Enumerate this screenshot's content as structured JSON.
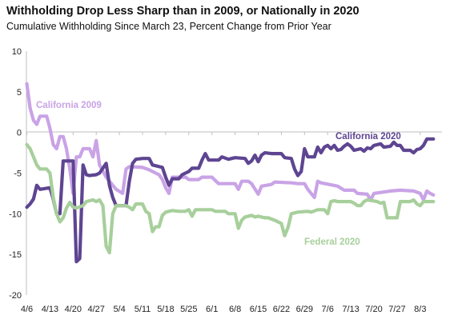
{
  "chart_data": {
    "type": "line",
    "title": "Withholding Drop Less Sharp than in 2009, or Nationally in 2020",
    "subtitle": "Cumulative Withholding Since March 23, Percent Change from Prior Year",
    "xlabel": "",
    "ylabel": "",
    "ylim": [
      -20,
      10
    ],
    "yticks": [
      10,
      5,
      0,
      -5,
      -10,
      -15,
      -20
    ],
    "x_tick_labels": [
      "4/6",
      "4/13",
      "4/20",
      "4/27",
      "5/4",
      "5/11",
      "5/18",
      "5/25",
      "6/1",
      "6/8",
      "6/15",
      "6/22",
      "6/29",
      "7/6",
      "7/13",
      "7/20",
      "7/27",
      "8/3"
    ],
    "x_start": "4/6",
    "x_end": "8/7",
    "grid": false,
    "series": [
      {
        "name": "California 2009",
        "color": "#c9a3e6",
        "points": [
          [
            0,
            6
          ],
          [
            1,
            3
          ],
          [
            2,
            1.5
          ],
          [
            3,
            1
          ],
          [
            4,
            2
          ],
          [
            6,
            2
          ],
          [
            7,
            0.5
          ],
          [
            8,
            -1.5
          ],
          [
            9,
            -2
          ],
          [
            10,
            -0.5
          ],
          [
            11,
            -0.5
          ],
          [
            12,
            -2
          ],
          [
            13,
            -4.5
          ],
          [
            14,
            -7.5
          ],
          [
            15,
            -3
          ],
          [
            16,
            -3
          ],
          [
            17,
            -2
          ],
          [
            19,
            -2
          ],
          [
            20,
            -3
          ],
          [
            21,
            -1
          ],
          [
            22,
            -4
          ],
          [
            24,
            -5.5
          ],
          [
            25,
            -6
          ],
          [
            27,
            -7
          ],
          [
            29,
            -7.5
          ],
          [
            30,
            -4.5
          ],
          [
            31,
            -4.2
          ],
          [
            35,
            -4.3
          ],
          [
            37,
            -4.6
          ],
          [
            39,
            -5
          ],
          [
            40,
            -5.2
          ],
          [
            41,
            -5.8
          ],
          [
            42,
            -6.8
          ],
          [
            43,
            -7.5
          ],
          [
            44,
            -5.5
          ],
          [
            48,
            -5.5
          ],
          [
            49,
            -5.8
          ],
          [
            52,
            -5.8
          ],
          [
            53,
            -5.5
          ],
          [
            56,
            -5.5
          ],
          [
            57,
            -5.9
          ],
          [
            58,
            -6.3
          ],
          [
            63,
            -6.3
          ],
          [
            64,
            -7
          ],
          [
            65,
            -6
          ],
          [
            67,
            -6
          ],
          [
            68,
            -6.3
          ],
          [
            70,
            -7.6
          ],
          [
            71,
            -6.6
          ],
          [
            74,
            -6.4
          ],
          [
            75,
            -6.1
          ],
          [
            80,
            -6.2
          ],
          [
            82,
            -6.3
          ],
          [
            84,
            -6.3
          ],
          [
            85,
            -7
          ],
          [
            86,
            -7.5
          ],
          [
            87,
            -8
          ],
          [
            88,
            -6
          ],
          [
            89,
            -6.2
          ],
          [
            94,
            -6.6
          ],
          [
            96,
            -7.1
          ],
          [
            99,
            -7.1
          ],
          [
            100,
            -7.5
          ],
          [
            103,
            -7.6
          ],
          [
            104,
            -8.3
          ],
          [
            105,
            -7.5
          ],
          [
            110,
            -7.2
          ],
          [
            113,
            -7.1
          ],
          [
            117,
            -7.2
          ],
          [
            119,
            -7.5
          ],
          [
            120,
            -8.3
          ],
          [
            121,
            -7.2
          ],
          [
            122,
            -7.5
          ],
          [
            123,
            -7.7
          ]
        ]
      },
      {
        "name": "California 2020",
        "color": "#5e4591",
        "points": [
          [
            0,
            -9.2
          ],
          [
            1,
            -8.8
          ],
          [
            2,
            -8.2
          ],
          [
            3,
            -6.5
          ],
          [
            4,
            -7
          ],
          [
            7,
            -6.8
          ],
          [
            8,
            -8.2
          ],
          [
            9,
            -10
          ],
          [
            10,
            -10
          ],
          [
            11,
            -3.5
          ],
          [
            14,
            -3.5
          ],
          [
            15,
            -15.9
          ],
          [
            16,
            -15.5
          ],
          [
            17,
            -4
          ],
          [
            18,
            -5.2
          ],
          [
            19,
            -5.3
          ],
          [
            21,
            -5.2
          ],
          [
            22,
            -5
          ],
          [
            24,
            -3.8
          ],
          [
            25,
            -6.5
          ],
          [
            26,
            -8
          ],
          [
            27,
            -9
          ],
          [
            30,
            -9
          ],
          [
            31,
            -6
          ],
          [
            32,
            -3.8
          ],
          [
            33,
            -3.3
          ],
          [
            35,
            -3.2
          ],
          [
            37,
            -3.2
          ],
          [
            38,
            -4
          ],
          [
            41,
            -4.3
          ],
          [
            42,
            -5.5
          ],
          [
            43,
            -6.5
          ],
          [
            44,
            -5.7
          ],
          [
            46,
            -5.7
          ],
          [
            47,
            -5.2
          ],
          [
            49,
            -4.8
          ],
          [
            50,
            -4.4
          ],
          [
            52,
            -4.4
          ],
          [
            53,
            -3.4
          ],
          [
            54,
            -2.6
          ],
          [
            55,
            -3.4
          ],
          [
            58,
            -3.4
          ],
          [
            59,
            -3
          ],
          [
            61,
            -3.3
          ],
          [
            63,
            -3.1
          ],
          [
            66,
            -3.2
          ],
          [
            67,
            -3.8
          ],
          [
            68,
            -3.5
          ],
          [
            69,
            -2.8
          ],
          [
            70,
            -3.6
          ],
          [
            71,
            -2.8
          ],
          [
            72,
            -2.5
          ],
          [
            74,
            -2.6
          ],
          [
            77,
            -2.6
          ],
          [
            78,
            -3.1
          ],
          [
            80,
            -3.2
          ],
          [
            81,
            -4.5
          ],
          [
            82,
            -5.3
          ],
          [
            83,
            -4.8
          ],
          [
            84,
            -2
          ],
          [
            85,
            -3
          ],
          [
            87,
            -3
          ],
          [
            88,
            -1.8
          ],
          [
            89,
            -2.5
          ],
          [
            90,
            -1.8
          ],
          [
            91,
            -1.6
          ],
          [
            92,
            -2
          ],
          [
            93,
            -1.6
          ],
          [
            94,
            -2.2
          ],
          [
            95,
            -2.1
          ],
          [
            96,
            -1.7
          ],
          [
            97,
            -1.4
          ],
          [
            98,
            -1.7
          ],
          [
            99,
            -2.2
          ],
          [
            101,
            -2
          ],
          [
            102,
            -2.3
          ],
          [
            103,
            -1.9
          ],
          [
            104,
            -2
          ],
          [
            105,
            -1.6
          ],
          [
            107,
            -1.4
          ],
          [
            108,
            -1.8
          ],
          [
            110,
            -1.7
          ],
          [
            111,
            -1.2
          ],
          [
            112,
            -1.6
          ],
          [
            113,
            -1.6
          ],
          [
            114,
            -2.2
          ],
          [
            116,
            -2.2
          ],
          [
            117,
            -2.5
          ],
          [
            118,
            -2.1
          ],
          [
            119,
            -2
          ],
          [
            120,
            -1.6
          ],
          [
            121,
            -0.8
          ],
          [
            123,
            -0.8
          ]
        ]
      },
      {
        "name": "Federal 2020",
        "color": "#a7cf9b",
        "points": [
          [
            0,
            -1.5
          ],
          [
            1,
            -2
          ],
          [
            2,
            -3
          ],
          [
            3,
            -4
          ],
          [
            4,
            -4.5
          ],
          [
            6,
            -4.5
          ],
          [
            7,
            -5
          ],
          [
            8,
            -8
          ],
          [
            9,
            -10
          ],
          [
            10,
            -11
          ],
          [
            11,
            -10.5
          ],
          [
            12,
            -9.3
          ],
          [
            13,
            -8.6
          ],
          [
            14,
            -9.2
          ],
          [
            15,
            -9.3
          ],
          [
            17,
            -9
          ],
          [
            18,
            -8.5
          ],
          [
            20,
            -8.3
          ],
          [
            21,
            -8.5
          ],
          [
            22,
            -8.3
          ],
          [
            23,
            -9
          ],
          [
            24,
            -14
          ],
          [
            25,
            -14.8
          ],
          [
            26,
            -10
          ],
          [
            27,
            -9
          ],
          [
            30,
            -9
          ],
          [
            31,
            -9.2
          ],
          [
            32,
            -9.5
          ],
          [
            33,
            -8.8
          ],
          [
            35,
            -8.8
          ],
          [
            36,
            -9.7
          ],
          [
            37,
            -10
          ],
          [
            38,
            -12.2
          ],
          [
            39,
            -11.6
          ],
          [
            40,
            -11.6
          ],
          [
            41,
            -10.2
          ],
          [
            42,
            -9.8
          ],
          [
            44,
            -9.6
          ],
          [
            46,
            -9.7
          ],
          [
            48,
            -9.7
          ],
          [
            49,
            -9.5
          ],
          [
            50,
            -10.3
          ],
          [
            51,
            -9.5
          ],
          [
            56,
            -9.5
          ],
          [
            57,
            -9.7
          ],
          [
            60,
            -9.7
          ],
          [
            61,
            -10
          ],
          [
            63,
            -10
          ],
          [
            64,
            -11.8
          ],
          [
            65,
            -10.8
          ],
          [
            66,
            -10.4
          ],
          [
            68,
            -10.2
          ],
          [
            69,
            -10.4
          ],
          [
            70,
            -10.3
          ],
          [
            72,
            -10.5
          ],
          [
            73,
            -10.5
          ],
          [
            75,
            -10.8
          ],
          [
            77,
            -11.2
          ],
          [
            78,
            -12.7
          ],
          [
            79,
            -11.7
          ],
          [
            80,
            -10
          ],
          [
            82,
            -9.8
          ],
          [
            85,
            -9.7
          ],
          [
            86,
            -9.8
          ],
          [
            88,
            -9.5
          ],
          [
            90,
            -9.5
          ],
          [
            91,
            -10
          ],
          [
            92,
            -8.5
          ],
          [
            93,
            -8.4
          ],
          [
            94,
            -8.5
          ],
          [
            96,
            -8.5
          ],
          [
            98,
            -8.5
          ],
          [
            99,
            -8.7
          ],
          [
            100,
            -9
          ],
          [
            101,
            -9
          ],
          [
            102,
            -8.5
          ],
          [
            103,
            -8.3
          ],
          [
            106,
            -8.5
          ],
          [
            107,
            -8.7
          ],
          [
            108,
            -8.6
          ],
          [
            109,
            -10.5
          ],
          [
            112,
            -10.5
          ],
          [
            113,
            -8.5
          ],
          [
            116,
            -8.5
          ],
          [
            117,
            -8.3
          ],
          [
            118,
            -8.8
          ],
          [
            119,
            -9
          ],
          [
            120,
            -8.5
          ],
          [
            123,
            -8.5
          ]
        ]
      }
    ],
    "labels": [
      {
        "text": "California 2009",
        "series": 0
      },
      {
        "text": "California  2020",
        "series": 1
      },
      {
        "text": "Federal 2020",
        "series": 2
      }
    ]
  }
}
